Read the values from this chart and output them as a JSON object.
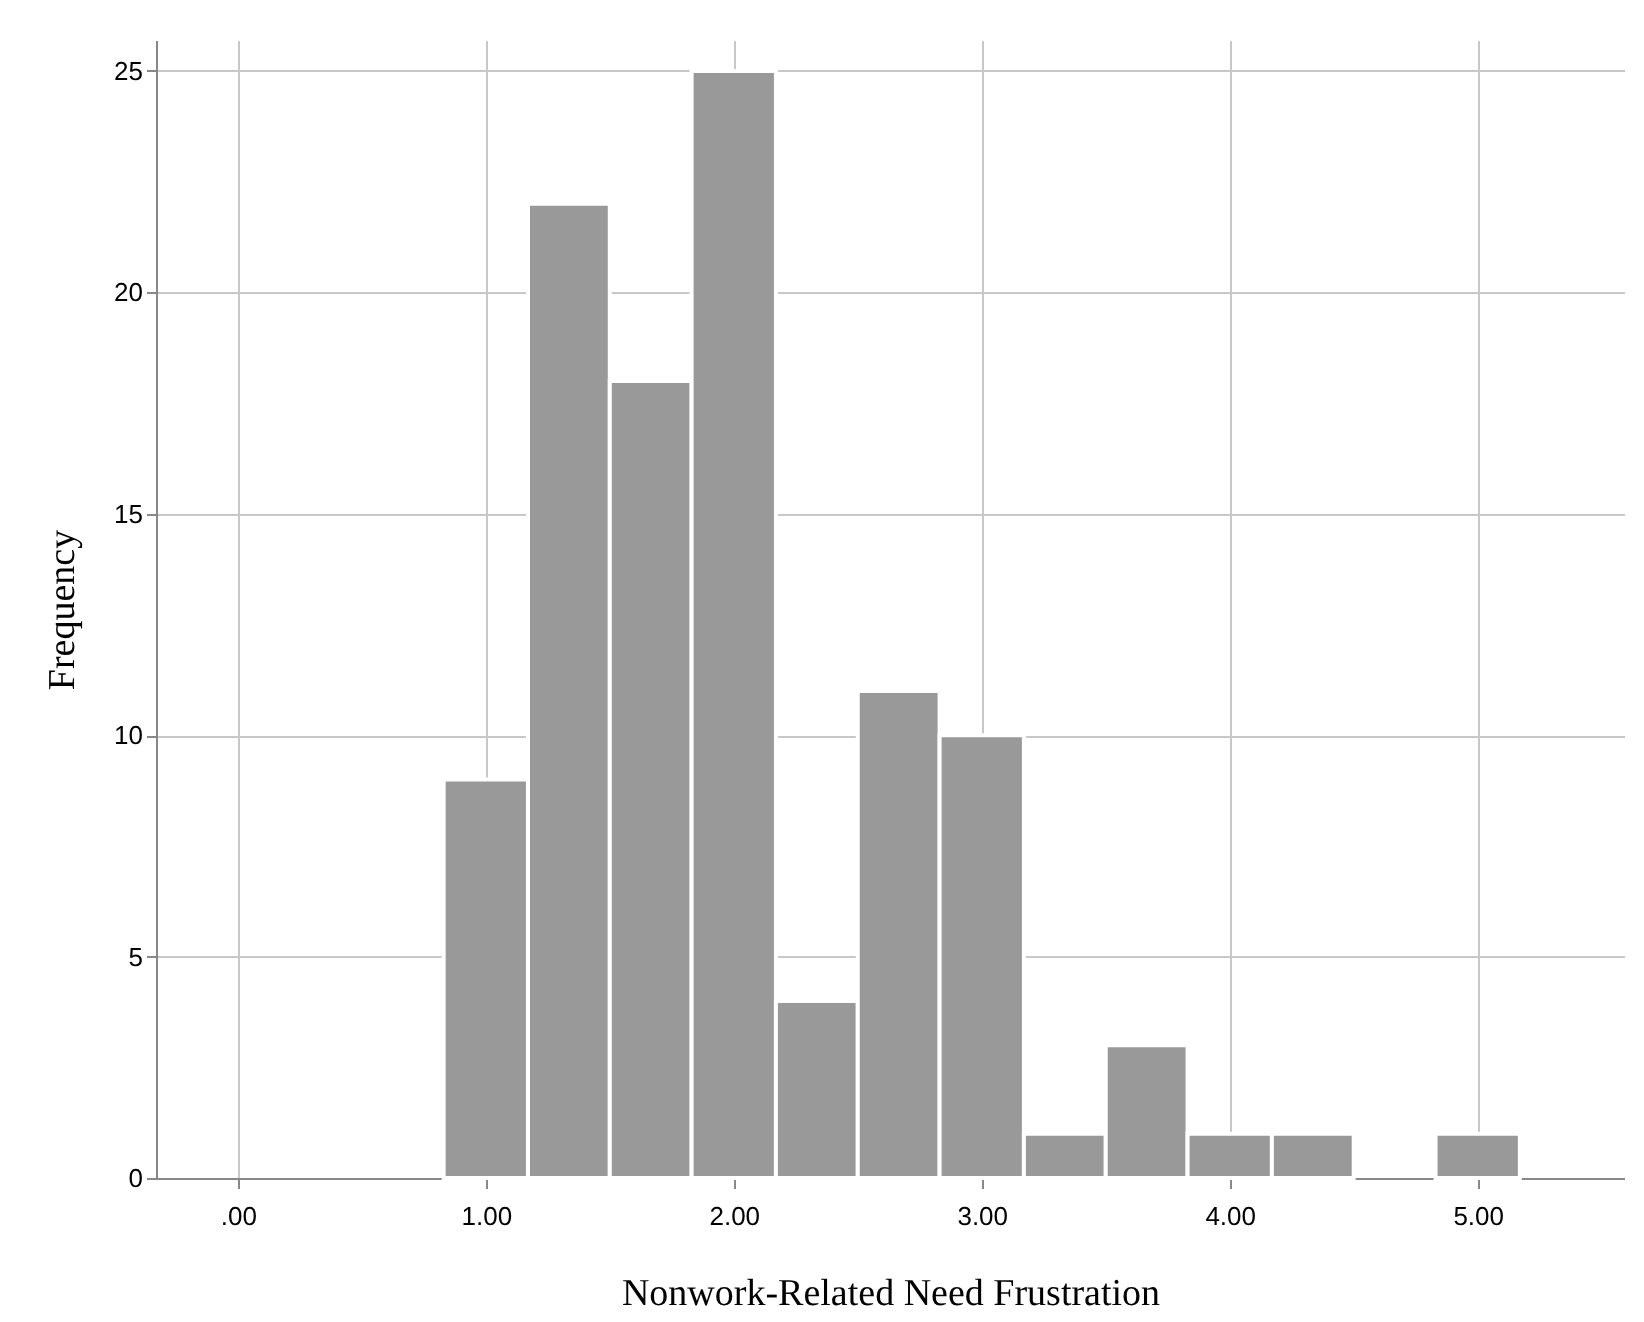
{
  "chart_data": {
    "type": "histogram",
    "xlabel": "Nonwork-Related Need Frustration",
    "ylabel": "Frequency",
    "bins": [
      0.83,
      1.17,
      1.5,
      1.83,
      2.17,
      2.5,
      2.83,
      3.17,
      3.5,
      3.83,
      4.17,
      4.5,
      4.83,
      5.17
    ],
    "values": [
      9,
      22,
      18,
      25,
      4,
      11,
      10,
      1,
      3,
      1,
      1,
      0,
      1
    ],
    "color": "#999999",
    "xlim": [
      -0.33,
      5.59
    ],
    "ylim": [
      0,
      25.7
    ],
    "xticks": [
      {
        "value": 0,
        "label": ".00"
      },
      {
        "value": 1,
        "label": "1.00"
      },
      {
        "value": 2,
        "label": "2.00"
      },
      {
        "value": 3,
        "label": "3.00"
      },
      {
        "value": 4,
        "label": "4.00"
      },
      {
        "value": 5,
        "label": "5.00"
      }
    ],
    "yticks": [
      0,
      5,
      10,
      15,
      20,
      25
    ],
    "grid": true
  }
}
